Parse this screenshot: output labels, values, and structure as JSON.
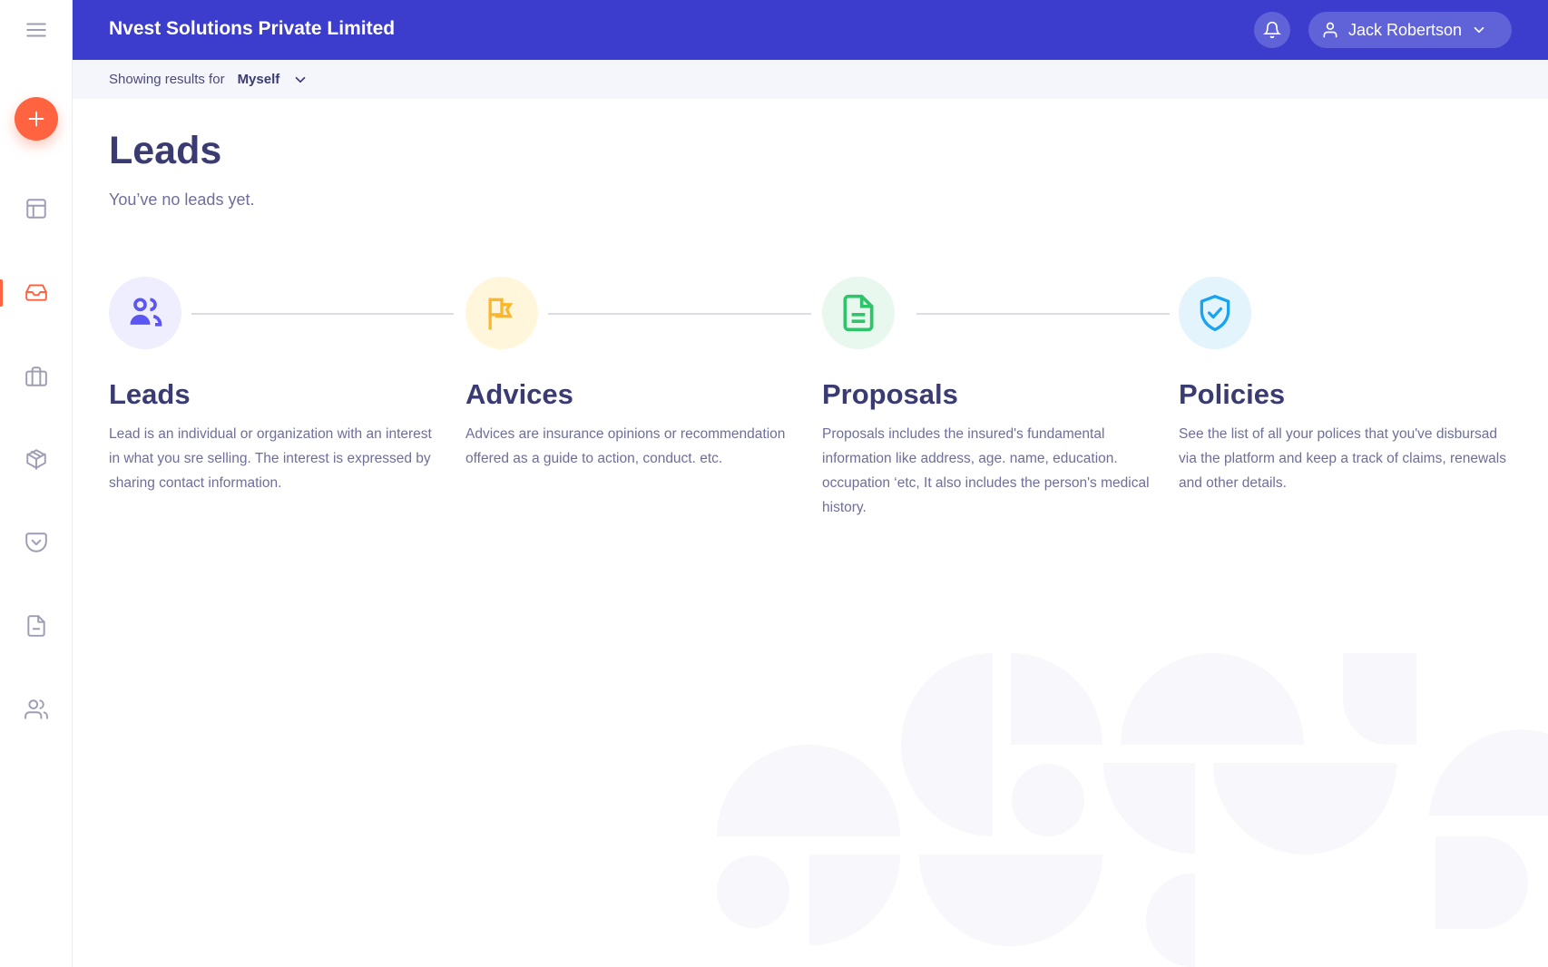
{
  "header": {
    "company": "Nvest Solutions Private Limited",
    "user_name": "Jack Robertson",
    "brand_color": "#3c3dcc",
    "accent_color": "#ff6340"
  },
  "filter": {
    "label": "Showing results for",
    "value": "Myself"
  },
  "page": {
    "title": "Leads",
    "subtitle": "You’ve no leads yet."
  },
  "sidebar": {
    "items": [
      "menu-icon",
      "add-icon",
      "layout-icon",
      "inbox-icon",
      "briefcase-icon",
      "box-icon",
      "pocket-icon",
      "document-icon",
      "users-icon"
    ],
    "active": "inbox-icon"
  },
  "steps": [
    {
      "title": "Leads",
      "description": "Lead is an individual or organization with an interest in what you sre selling. The interest is expressed by sharing contact information.",
      "icon": "users-icon",
      "color": "#5b57f0"
    },
    {
      "title": "Advices",
      "description": "Advices are insurance opinions or recommendation offered as a guide to action, conduct. etc.",
      "icon": "flag-icon",
      "color": "#fbb62c"
    },
    {
      "title": "Proposals",
      "description": "Proposals includes the insured's fundamental information like address, age. name, education. occupation ‘etc, It also includes the person's medical history.",
      "icon": "document-icon",
      "color": "#2ec46a"
    },
    {
      "title": "Policies",
      "description": "See the list of all your polices that you've disbursad via the platform and keep a track of claims, renewals and other details.",
      "icon": "shield-check-icon",
      "color": "#1aa3f0"
    }
  ]
}
